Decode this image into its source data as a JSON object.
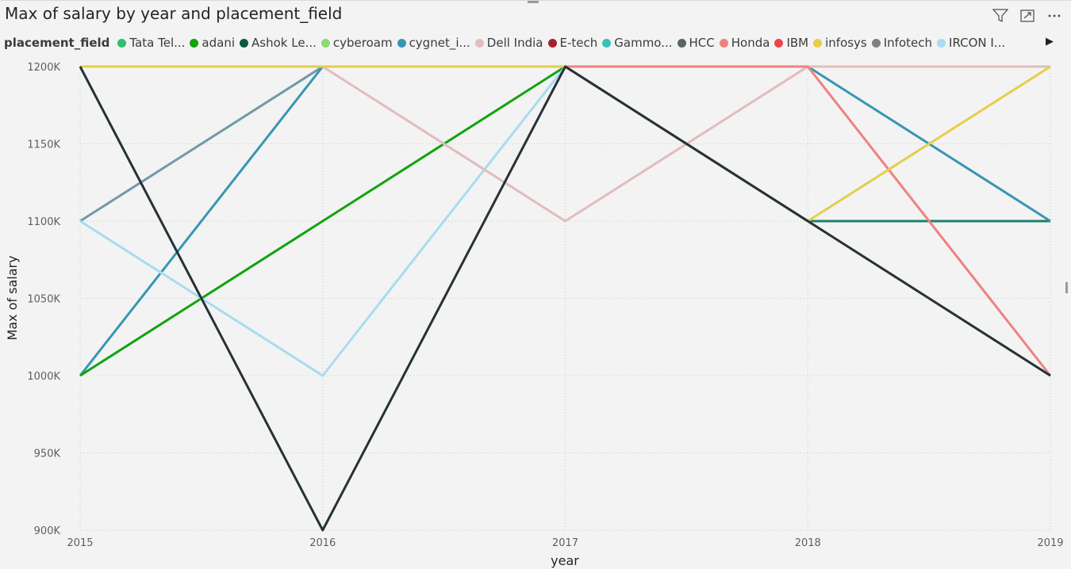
{
  "header": {
    "title": "Max of salary by year and placement_field",
    "icons": [
      "filter-icon",
      "focus-mode-icon",
      "more-options-icon"
    ]
  },
  "chart_data": {
    "type": "line",
    "title": "Max of salary by year and placement_field",
    "xlabel": "year",
    "ylabel": "Max of salary",
    "legend_title": "placement_field",
    "legend_position": "top",
    "grid": true,
    "ylim": [
      900000,
      1200000
    ],
    "x": [
      2015,
      2016,
      2017,
      2018,
      2019
    ],
    "x_tick_labels": [
      "2015",
      "2016",
      "2017",
      "2018",
      "2019"
    ],
    "y_ticks": [
      900000,
      950000,
      1000000,
      1050000,
      1100000,
      1150000,
      1200000
    ],
    "y_tick_labels": [
      "900K",
      "950K",
      "1000K",
      "1050K",
      "1100K",
      "1150K",
      "1200K"
    ],
    "legend": [
      {
        "label": "Tata Tel...",
        "color": "#2fbf71"
      },
      {
        "label": "adani",
        "color": "#12a40e"
      },
      {
        "label": "Ashok Le...",
        "color": "#0b5a46"
      },
      {
        "label": "cyberoam",
        "color": "#8fdc6e"
      },
      {
        "label": "cygnet_i...",
        "color": "#3697b3"
      },
      {
        "label": "Dell India",
        "color": "#e3bcbc"
      },
      {
        "label": "E-tech",
        "color": "#a3212c"
      },
      {
        "label": "Gammo...",
        "color": "#3cbfb5"
      },
      {
        "label": "HCC",
        "color": "#5b6466"
      },
      {
        "label": "Honda",
        "color": "#f08080"
      },
      {
        "label": "IBM",
        "color": "#e8474d"
      },
      {
        "label": "infosys",
        "color": "#e8cd4a"
      },
      {
        "label": "Infotech",
        "color": "#808080"
      },
      {
        "label": "IRCON I...",
        "color": "#a8dcee"
      }
    ],
    "series": [
      {
        "color": "#6f9aa6",
        "values": [
          1100000,
          1200000,
          1200000,
          1200000,
          1200000
        ]
      },
      {
        "color": "#1e7f6e",
        "values": [
          1200000,
          1200000,
          1200000,
          1100000,
          1100000
        ]
      },
      {
        "color": "#3697b3",
        "values": [
          1000000,
          1200000,
          1200000,
          1200000,
          1100000
        ]
      },
      {
        "color": "#12a40e",
        "values": [
          1000000,
          1100000,
          1200000,
          1200000,
          1200000
        ]
      },
      {
        "color": "#a8dcee",
        "values": [
          1100000,
          1000000,
          1200000,
          1200000,
          1200000
        ]
      },
      {
        "color": "#e3bcbc",
        "values": [
          1200000,
          1200000,
          1100000,
          1200000,
          1200000
        ]
      },
      {
        "color": "#f08080",
        "values": [
          1200000,
          1200000,
          1200000,
          1200000,
          1000000
        ]
      },
      {
        "color": "#e8cd4a",
        "values": [
          1200000,
          1200000,
          1200000,
          1100000,
          1200000
        ]
      },
      {
        "color": "#263236",
        "values": [
          1200000,
          900000,
          1200000,
          1100000,
          1000000
        ]
      }
    ]
  }
}
